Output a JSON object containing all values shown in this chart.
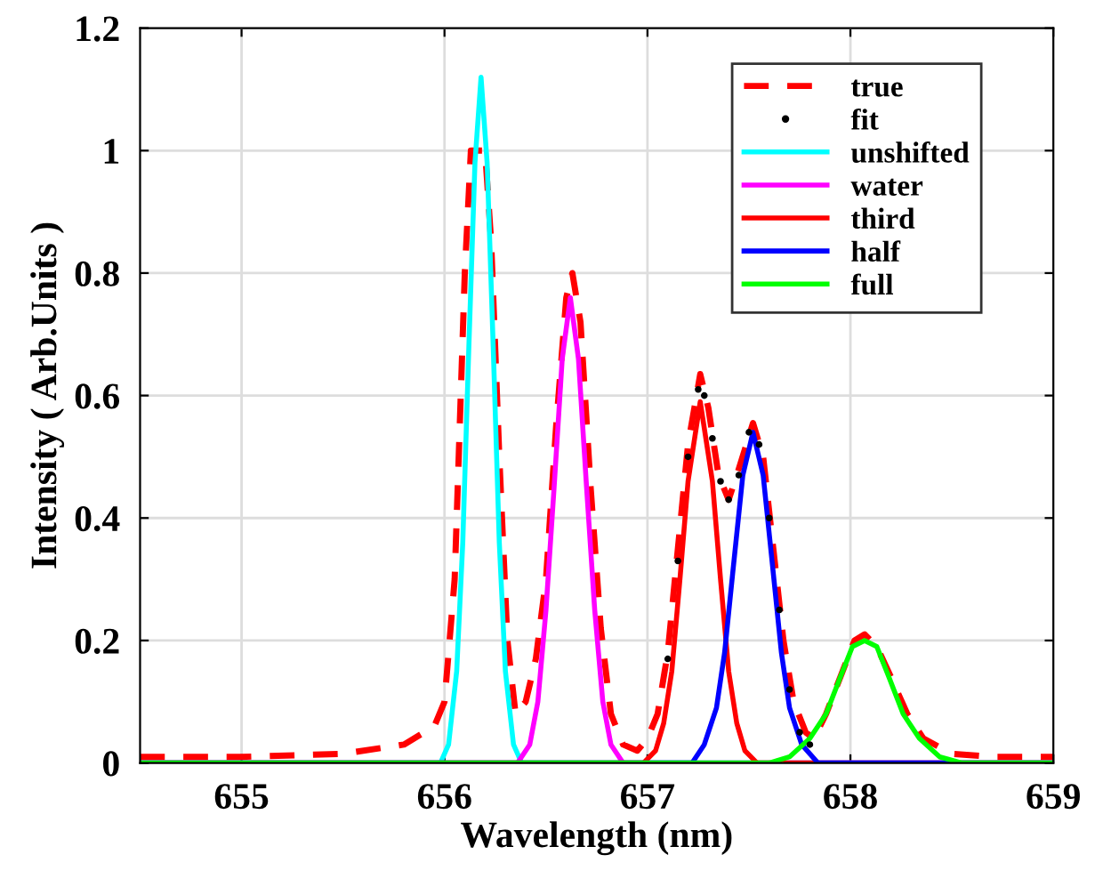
{
  "chart_data": {
    "type": "line",
    "xlabel": "Wavelength (nm)",
    "ylabel": "Intensity ( Arb.Units )",
    "xlim": [
      654.5,
      659
    ],
    "xticks": [
      655,
      656,
      657,
      658,
      659
    ],
    "ylim": [
      0,
      1.2
    ],
    "yticks": [
      0,
      0.2,
      0.4,
      0.6,
      0.8,
      1,
      1.2
    ],
    "grid": true,
    "legend": "top right",
    "series": [
      {
        "name": "true",
        "color": "#ff0000",
        "line_style": "dashed",
        "x": [
          654.5,
          655.0,
          655.5,
          655.8,
          655.95,
          656.0,
          656.05,
          656.1,
          656.13,
          656.2,
          656.23,
          656.27,
          656.31,
          656.35,
          656.4,
          656.45,
          656.5,
          656.55,
          656.6,
          656.63,
          656.67,
          656.72,
          656.77,
          656.82,
          656.88,
          656.95,
          657.0,
          657.05,
          657.1,
          657.15,
          657.2,
          657.26,
          657.3,
          657.35,
          657.4,
          657.45,
          657.52,
          657.57,
          657.62,
          657.67,
          657.72,
          657.78,
          657.82,
          657.88,
          657.95,
          658.02,
          658.07,
          658.13,
          658.2,
          658.28,
          658.36,
          658.5,
          658.7,
          659.0
        ],
        "values": [
          0.01,
          0.01,
          0.015,
          0.03,
          0.06,
          0.1,
          0.3,
          0.8,
          1.0,
          1.0,
          0.85,
          0.5,
          0.2,
          0.08,
          0.1,
          0.17,
          0.3,
          0.55,
          0.76,
          0.8,
          0.72,
          0.45,
          0.22,
          0.08,
          0.03,
          0.02,
          0.04,
          0.08,
          0.18,
          0.35,
          0.52,
          0.635,
          0.58,
          0.47,
          0.43,
          0.48,
          0.555,
          0.5,
          0.35,
          0.2,
          0.1,
          0.05,
          0.04,
          0.08,
          0.14,
          0.2,
          0.21,
          0.19,
          0.14,
          0.08,
          0.04,
          0.015,
          0.01,
          0.01
        ]
      },
      {
        "name": "fit",
        "color": "#000000",
        "type": "scatter",
        "marker": "circle",
        "x": [
          657.1,
          657.15,
          657.2,
          657.25,
          657.28,
          657.32,
          657.36,
          657.4,
          657.45,
          657.5,
          657.55,
          657.6,
          657.65,
          657.7,
          657.75,
          657.8
        ],
        "values": [
          0.17,
          0.33,
          0.5,
          0.61,
          0.6,
          0.53,
          0.46,
          0.43,
          0.47,
          0.54,
          0.52,
          0.4,
          0.25,
          0.12,
          0.05,
          0.03
        ]
      },
      {
        "name": "unshifted",
        "color": "#00ffff",
        "x": [
          654.5,
          655.98,
          656.02,
          656.06,
          656.09,
          656.12,
          656.15,
          656.18,
          656.21,
          656.24,
          656.27,
          656.3,
          656.34,
          656.38,
          659.0
        ],
        "values": [
          0,
          0,
          0.03,
          0.15,
          0.36,
          0.68,
          0.98,
          1.12,
          0.98,
          0.68,
          0.36,
          0.15,
          0.03,
          0,
          0
        ]
      },
      {
        "name": "water",
        "color": "#ff00ff",
        "x": [
          654.5,
          656.36,
          656.42,
          656.46,
          656.5,
          656.54,
          656.58,
          656.62,
          656.66,
          656.7,
          656.74,
          656.78,
          656.82,
          656.88,
          659.0
        ],
        "values": [
          0,
          0,
          0.03,
          0.1,
          0.25,
          0.45,
          0.66,
          0.76,
          0.66,
          0.45,
          0.25,
          0.1,
          0.03,
          0,
          0
        ]
      },
      {
        "name": "third",
        "color": "#ff0000",
        "x": [
          654.5,
          656.98,
          657.04,
          657.08,
          657.12,
          657.16,
          657.2,
          657.26,
          657.32,
          657.36,
          657.4,
          657.44,
          657.48,
          657.54,
          659.0
        ],
        "values": [
          0,
          0,
          0.02,
          0.065,
          0.15,
          0.3,
          0.46,
          0.59,
          0.46,
          0.3,
          0.15,
          0.065,
          0.02,
          0,
          0
        ]
      },
      {
        "name": "half",
        "color": "#0000ff",
        "x": [
          654.5,
          657.22,
          657.28,
          657.34,
          657.38,
          657.42,
          657.47,
          657.52,
          657.57,
          657.62,
          657.66,
          657.7,
          657.76,
          657.84,
          659.0
        ],
        "values": [
          0,
          0,
          0.03,
          0.09,
          0.18,
          0.31,
          0.47,
          0.54,
          0.47,
          0.31,
          0.18,
          0.09,
          0.03,
          0,
          0
        ]
      },
      {
        "name": "full",
        "color": "#00ff00",
        "x": [
          654.5,
          657.6,
          657.7,
          657.8,
          657.88,
          657.95,
          658.01,
          658.07,
          658.13,
          658.19,
          658.26,
          658.34,
          658.44,
          658.55,
          659.0
        ],
        "values": [
          0,
          0,
          0.01,
          0.04,
          0.08,
          0.14,
          0.19,
          0.2,
          0.19,
          0.14,
          0.08,
          0.04,
          0.01,
          0,
          0
        ]
      }
    ]
  }
}
